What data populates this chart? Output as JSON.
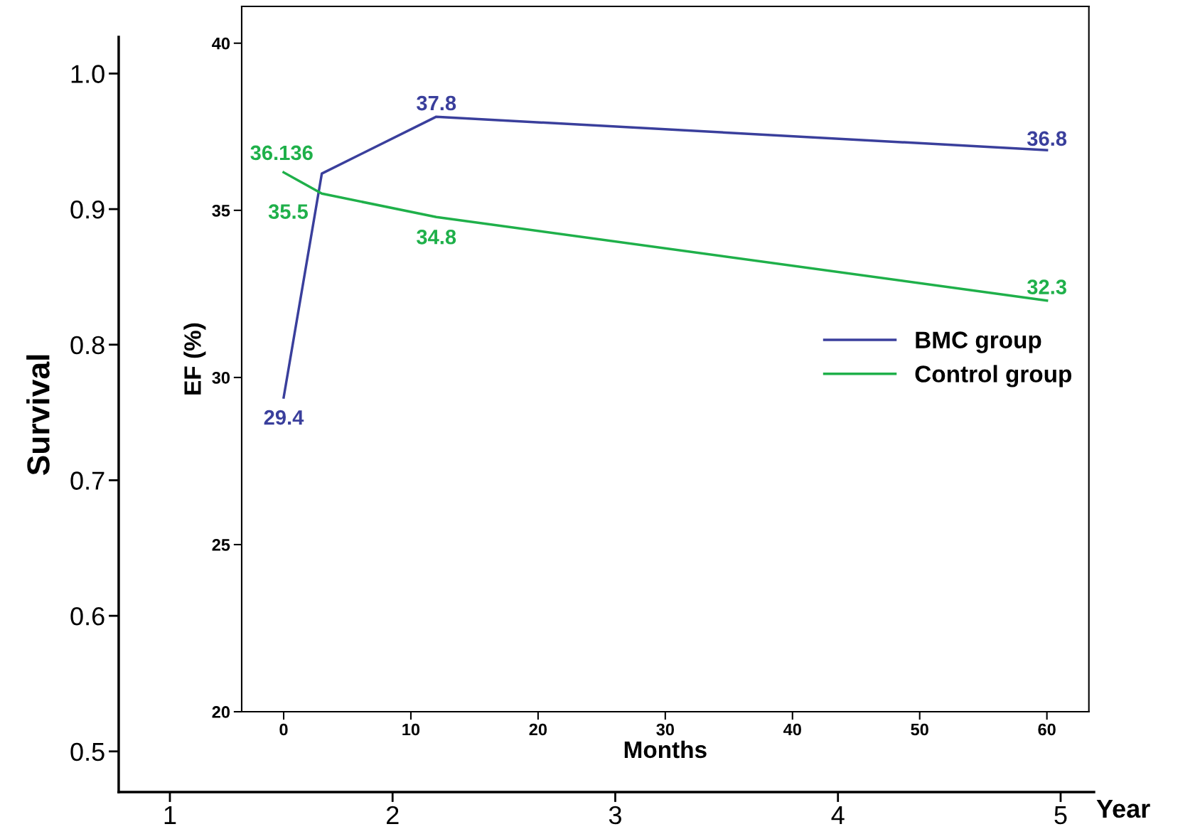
{
  "chart_data": [
    {
      "type": "line",
      "xlabel": "Year",
      "ylabel": "Survival",
      "xlim": [
        0.77,
        5.15
      ],
      "ylim": [
        0.47,
        1.027
      ],
      "xticks": [
        1,
        2,
        3,
        4,
        5
      ],
      "yticks": [
        {
          "value": 0.5,
          "label": "0.5"
        },
        {
          "value": 0.6,
          "label": "0.6"
        },
        {
          "value": 0.7,
          "label": "0.7"
        },
        {
          "value": 0.8,
          "label": "0.8"
        },
        {
          "value": 0.9,
          "label": "0.9"
        },
        {
          "value": 1.0,
          "label": "1.0"
        }
      ],
      "grid": false,
      "legend": false
    },
    {
      "type": "line",
      "xlabel": "Months",
      "ylabel": "EF (%)",
      "xlim": [
        -3.3,
        63.3
      ],
      "ylim": [
        20,
        41.1
      ],
      "xticks": [
        0,
        10,
        20,
        30,
        40,
        50,
        60
      ],
      "yticks": [
        20,
        25,
        30,
        35,
        40
      ],
      "grid": false,
      "legend": "center right",
      "marker": "none",
      "line_style": "solid",
      "series": [
        {
          "name": "BMC group",
          "color": "#3a3f9c",
          "x": [
            0,
            3,
            12,
            60
          ],
          "values": [
            29.4,
            36.1,
            37.8,
            36.8
          ],
          "value_labels": [
            "29.4",
            null,
            "37.8",
            "36.8"
          ]
        },
        {
          "name": "Control group",
          "color": "#1fb04a",
          "x": [
            0,
            3,
            12,
            60
          ],
          "values": [
            36.136,
            35.5,
            34.8,
            32.3
          ],
          "value_labels": [
            "36.136",
            "35.5",
            "34.8",
            "32.3"
          ]
        }
      ]
    }
  ]
}
